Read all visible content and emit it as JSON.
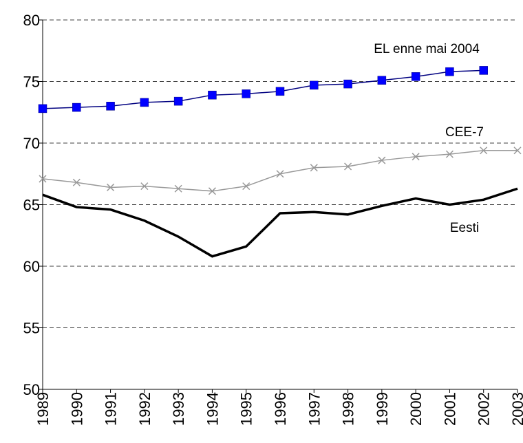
{
  "chart_data": {
    "type": "line",
    "categories": [
      "1989",
      "1990",
      "1991",
      "1992",
      "1993",
      "1994",
      "1995",
      "1996",
      "1997",
      "1998",
      "1999",
      "2000",
      "2001",
      "2002",
      "2003"
    ],
    "series": [
      {
        "name": "EL enne mai 2004",
        "color": "#0000ff",
        "line_color": "#000080",
        "marker": "square",
        "values": [
          72.8,
          72.9,
          73.0,
          73.3,
          73.4,
          73.9,
          74.0,
          74.2,
          74.7,
          74.8,
          75.1,
          75.4,
          75.8,
          75.9,
          null
        ]
      },
      {
        "name": "CEE-7",
        "color": "#999999",
        "line_color": "#999999",
        "marker": "x",
        "values": [
          67.1,
          66.8,
          66.4,
          66.5,
          66.3,
          66.1,
          66.5,
          67.5,
          68.0,
          68.1,
          68.6,
          68.9,
          69.1,
          69.4,
          69.4
        ]
      },
      {
        "name": "Eesti",
        "color": "#000000",
        "line_color": "#000000",
        "marker": "none",
        "values": [
          65.8,
          64.8,
          64.6,
          63.7,
          62.4,
          60.8,
          61.6,
          64.3,
          64.4,
          64.2,
          64.9,
          65.5,
          65.0,
          65.4,
          66.3
        ]
      }
    ],
    "ylim": [
      50,
      80
    ],
    "yticks": [
      50,
      55,
      60,
      65,
      70,
      75,
      80
    ],
    "grid": true
  }
}
